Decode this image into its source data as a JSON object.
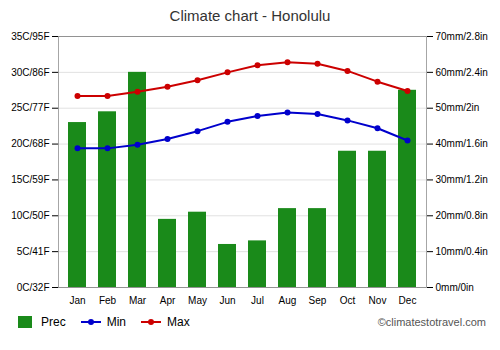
{
  "chart_data": {
    "type": "bar",
    "title": "Climate chart - Honolulu",
    "categories": [
      "Jan",
      "Feb",
      "Mar",
      "Apr",
      "May",
      "Jun",
      "Jul",
      "Aug",
      "Sep",
      "Oct",
      "Nov",
      "Dec"
    ],
    "series": [
      {
        "name": "Prec",
        "type": "bar",
        "axis": "y2",
        "color": "#1a8a1a",
        "values": [
          46,
          49,
          60,
          19,
          21,
          12,
          13,
          22,
          22,
          38,
          38,
          55
        ]
      },
      {
        "name": "Min",
        "type": "line",
        "color": "#0000cc",
        "marker": "o",
        "values": [
          19.4,
          19.4,
          19.9,
          20.7,
          21.8,
          23.1,
          23.9,
          24.4,
          24.2,
          23.3,
          22.2,
          20.5
        ]
      },
      {
        "name": "Max",
        "type": "line",
        "color": "#cc0000",
        "marker": "o",
        "values": [
          26.7,
          26.7,
          27.3,
          28.0,
          28.9,
          30.0,
          31.0,
          31.4,
          31.2,
          30.2,
          28.7,
          27.4
        ]
      }
    ],
    "ylim": [
      0,
      35
    ],
    "yticks": [
      {
        "value": 0,
        "label": "0C/32F"
      },
      {
        "value": 5,
        "label": "5C/41F"
      },
      {
        "value": 10,
        "label": "10C/50F"
      },
      {
        "value": 15,
        "label": "15C/59F"
      },
      {
        "value": 20,
        "label": "20C/68F"
      },
      {
        "value": 25,
        "label": "25C/77F"
      },
      {
        "value": 30,
        "label": "30C/86F"
      },
      {
        "value": 35,
        "label": "35C/95F"
      }
    ],
    "y2lim": [
      0,
      70
    ],
    "y2ticks": [
      {
        "value": 0,
        "label": "0mm/0in"
      },
      {
        "value": 10,
        "label": "10mm/0.4in"
      },
      {
        "value": 20,
        "label": "20mm/0.8in"
      },
      {
        "value": 30,
        "label": "30mm/1.2in"
      },
      {
        "value": 40,
        "label": "40mm/1.6in"
      },
      {
        "value": 50,
        "label": "50mm/2in"
      },
      {
        "value": 60,
        "label": "60mm/2.4in"
      },
      {
        "value": 70,
        "label": "70mm/2.8in"
      }
    ],
    "grid": true,
    "legend": "lower left",
    "annotations": [
      "©climatestotravel.com"
    ]
  }
}
